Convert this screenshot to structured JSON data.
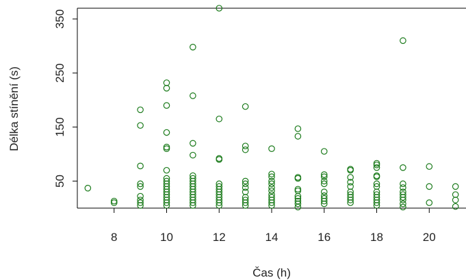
{
  "chart_data": {
    "type": "scatter",
    "title": "",
    "xlabel": "Čas (h)",
    "ylabel": "Délka stínění (s)",
    "xlim": [
      6.6,
      21.4
    ],
    "ylim": [
      0,
      370
    ],
    "xticks": [
      8,
      10,
      12,
      14,
      16,
      18,
      20
    ],
    "yticks": [
      50,
      150,
      250,
      350
    ],
    "grid": false,
    "point_color": "#1a7a1a",
    "marker": "open-circle",
    "series": [
      {
        "points": [
          [
            7,
            37
          ],
          [
            8,
            10
          ],
          [
            8,
            13
          ],
          [
            9,
            5
          ],
          [
            9,
            10
          ],
          [
            9,
            15
          ],
          [
            9,
            22
          ],
          [
            9,
            40
          ],
          [
            9,
            45
          ],
          [
            9,
            78
          ],
          [
            9,
            153
          ],
          [
            9,
            182
          ],
          [
            10,
            5
          ],
          [
            10,
            10
          ],
          [
            10,
            15
          ],
          [
            10,
            20
          ],
          [
            10,
            25
          ],
          [
            10,
            30
          ],
          [
            10,
            35
          ],
          [
            10,
            40
          ],
          [
            10,
            45
          ],
          [
            10,
            50
          ],
          [
            10,
            55
          ],
          [
            10,
            70
          ],
          [
            10,
            110
          ],
          [
            10,
            113
          ],
          [
            10,
            140
          ],
          [
            10,
            190
          ],
          [
            10,
            222
          ],
          [
            10,
            232
          ],
          [
            11,
            5
          ],
          [
            11,
            10
          ],
          [
            11,
            15
          ],
          [
            11,
            20
          ],
          [
            11,
            25
          ],
          [
            11,
            30
          ],
          [
            11,
            35
          ],
          [
            11,
            40
          ],
          [
            11,
            45
          ],
          [
            11,
            50
          ],
          [
            11,
            55
          ],
          [
            11,
            60
          ],
          [
            11,
            98
          ],
          [
            11,
            120
          ],
          [
            11,
            208
          ],
          [
            11,
            298
          ],
          [
            12,
            5
          ],
          [
            12,
            10
          ],
          [
            12,
            15
          ],
          [
            12,
            20
          ],
          [
            12,
            25
          ],
          [
            12,
            30
          ],
          [
            12,
            35
          ],
          [
            12,
            40
          ],
          [
            12,
            45
          ],
          [
            12,
            90
          ],
          [
            12,
            92
          ],
          [
            12,
            165
          ],
          [
            12,
            370
          ],
          [
            13,
            5
          ],
          [
            13,
            10
          ],
          [
            13,
            15
          ],
          [
            13,
            20
          ],
          [
            13,
            30
          ],
          [
            13,
            38
          ],
          [
            13,
            45
          ],
          [
            13,
            50
          ],
          [
            13,
            108
          ],
          [
            13,
            115
          ],
          [
            13,
            188
          ],
          [
            14,
            5
          ],
          [
            14,
            10
          ],
          [
            14,
            15
          ],
          [
            14,
            20
          ],
          [
            14,
            25
          ],
          [
            14,
            32
          ],
          [
            14,
            38
          ],
          [
            14,
            45
          ],
          [
            14,
            50
          ],
          [
            14,
            58
          ],
          [
            14,
            63
          ],
          [
            14,
            110
          ],
          [
            15,
            2
          ],
          [
            15,
            8
          ],
          [
            15,
            13
          ],
          [
            15,
            18
          ],
          [
            15,
            22
          ],
          [
            15,
            32
          ],
          [
            15,
            35
          ],
          [
            15,
            55
          ],
          [
            15,
            57
          ],
          [
            15,
            133
          ],
          [
            15,
            147
          ],
          [
            16,
            8
          ],
          [
            16,
            13
          ],
          [
            16,
            18
          ],
          [
            16,
            23
          ],
          [
            16,
            30
          ],
          [
            16,
            45
          ],
          [
            16,
            50
          ],
          [
            16,
            58
          ],
          [
            16,
            62
          ],
          [
            16,
            105
          ],
          [
            17,
            10
          ],
          [
            17,
            15
          ],
          [
            17,
            20
          ],
          [
            17,
            25
          ],
          [
            17,
            30
          ],
          [
            17,
            40
          ],
          [
            17,
            48
          ],
          [
            17,
            57
          ],
          [
            17,
            70
          ],
          [
            17,
            72
          ],
          [
            18,
            5
          ],
          [
            18,
            10
          ],
          [
            18,
            15
          ],
          [
            18,
            20
          ],
          [
            18,
            25
          ],
          [
            18,
            30
          ],
          [
            18,
            40
          ],
          [
            18,
            45
          ],
          [
            18,
            58
          ],
          [
            18,
            60
          ],
          [
            18,
            75
          ],
          [
            18,
            80
          ],
          [
            18,
            83
          ],
          [
            19,
            2
          ],
          [
            19,
            8
          ],
          [
            19,
            15
          ],
          [
            19,
            20
          ],
          [
            19,
            25
          ],
          [
            19,
            30
          ],
          [
            19,
            38
          ],
          [
            19,
            45
          ],
          [
            19,
            75
          ],
          [
            19,
            310
          ],
          [
            20,
            10
          ],
          [
            20,
            40
          ],
          [
            20,
            77
          ],
          [
            21,
            3
          ],
          [
            21,
            15
          ],
          [
            21,
            25
          ],
          [
            21,
            40
          ]
        ]
      }
    ]
  }
}
